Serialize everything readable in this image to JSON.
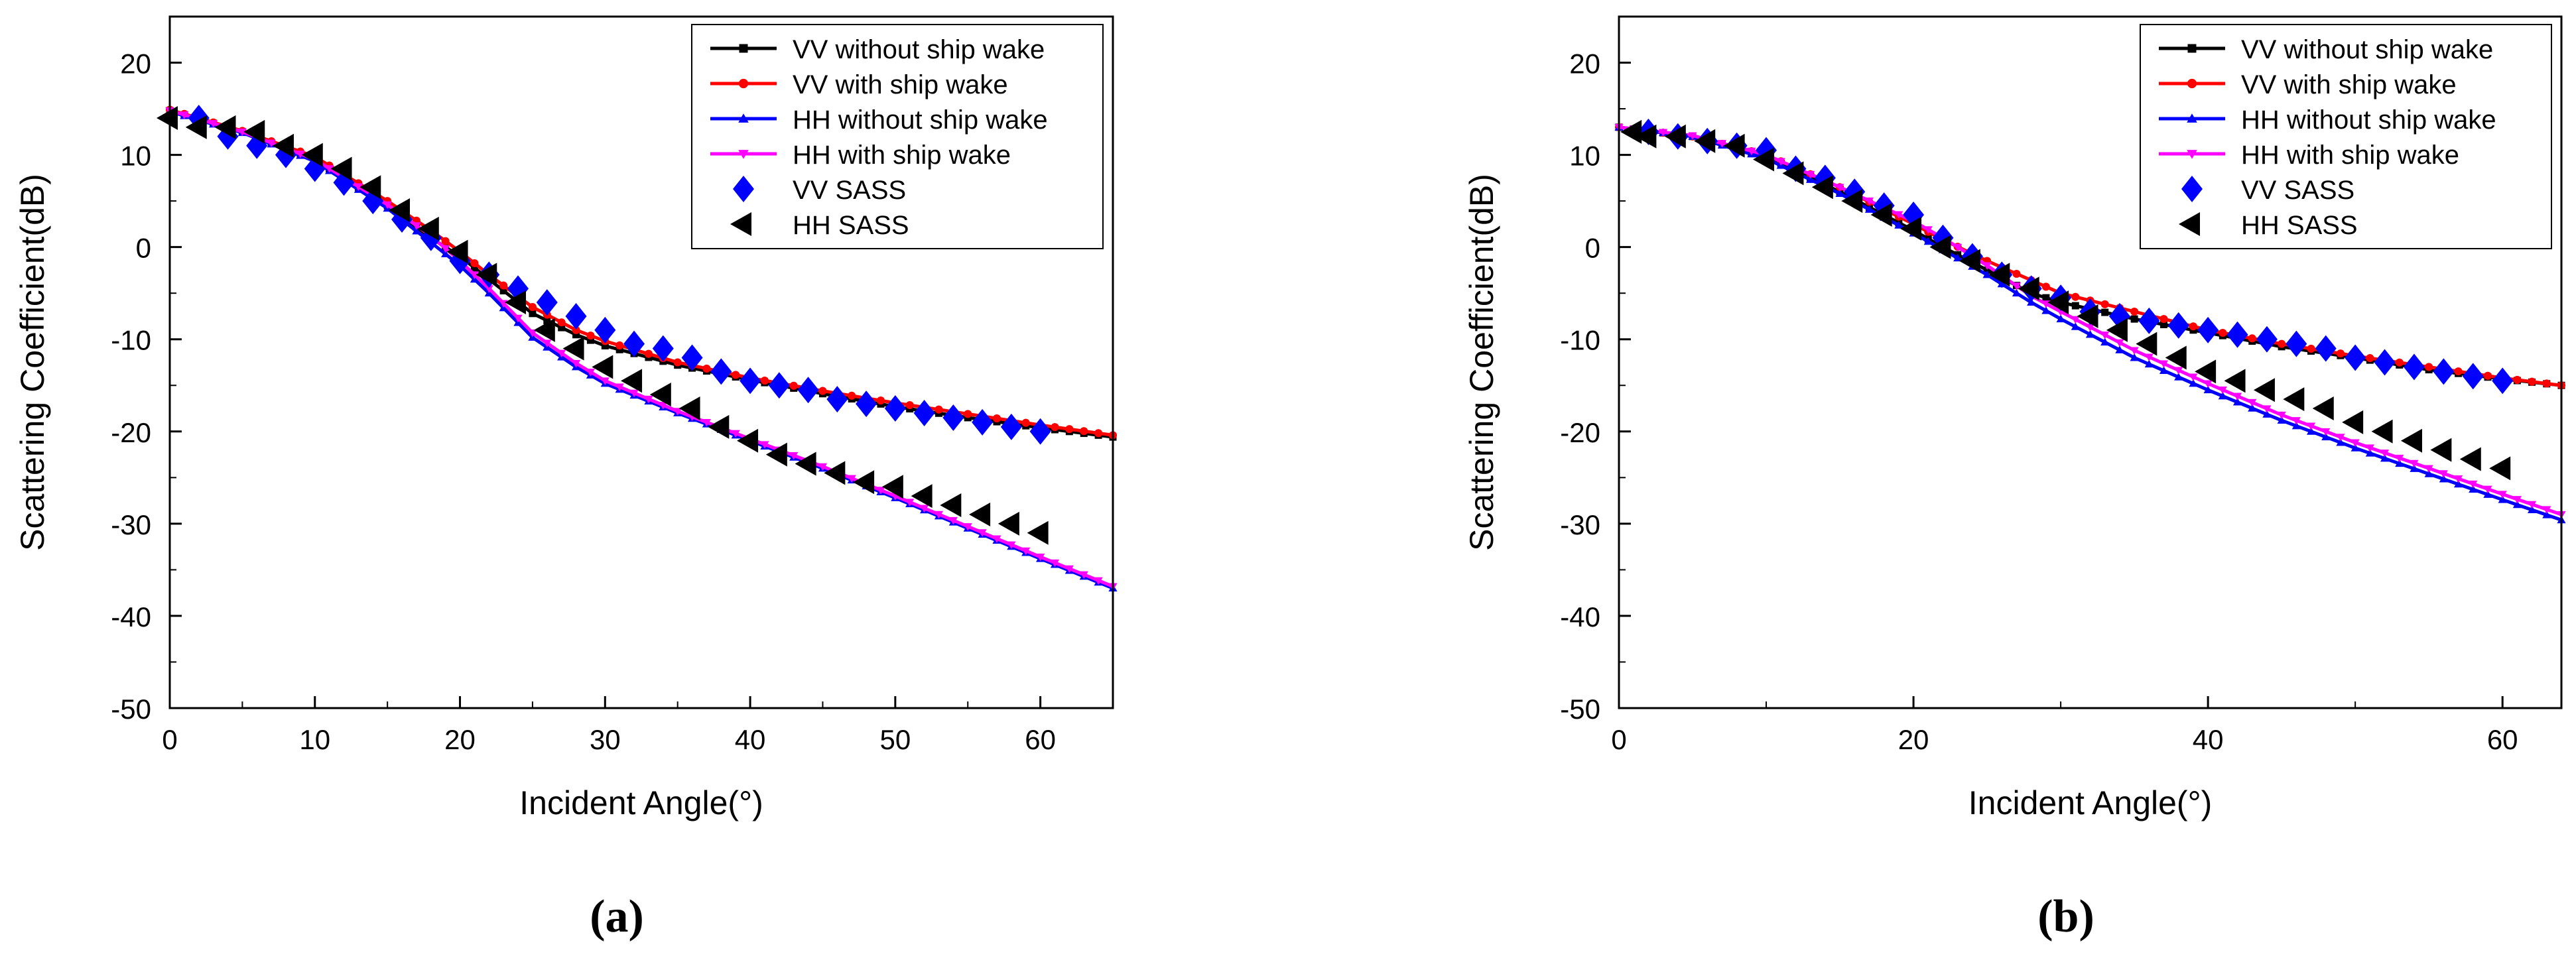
{
  "colors": {
    "vv_no_wake": "#000000",
    "vv_wake": "#ff0000",
    "hh_no_wake": "#0000ff",
    "hh_wake": "#ff00ff",
    "vv_sass": "#0000ff",
    "hh_sass": "#000000"
  },
  "chart_data": [
    {
      "type": "line",
      "panel_label": "(a)",
      "title": "",
      "xlabel": "Incident Angle(°)",
      "ylabel": "Scattering Coefficient(dB)",
      "xlim": [
        0,
        65
      ],
      "ylim": [
        -50,
        25
      ],
      "xticks": [
        0,
        10,
        20,
        30,
        40,
        50,
        60
      ],
      "yticks": [
        -50,
        -40,
        -30,
        -20,
        -10,
        0,
        10,
        20
      ],
      "legend_position": "top-right",
      "series": [
        {
          "name": "VV without ship wake",
          "marker": "square",
          "color": "#000000",
          "x": [
            0,
            5,
            10,
            15,
            18,
            20,
            22,
            25,
            28,
            30,
            35,
            40,
            45,
            50,
            55,
            60,
            65
          ],
          "y": [
            14.8,
            12.5,
            9.5,
            4.5,
            1.0,
            -1.0,
            -3.5,
            -7.2,
            -9.5,
            -10.7,
            -12.8,
            -14.4,
            -15.9,
            -17.3,
            -18.5,
            -19.6,
            -20.6
          ]
        },
        {
          "name": "VV with ship wake",
          "marker": "circle",
          "color": "#ff0000",
          "x": [
            0,
            5,
            10,
            15,
            18,
            20,
            22,
            25,
            28,
            30,
            35,
            40,
            45,
            50,
            55,
            60,
            65
          ],
          "y": [
            14.9,
            12.6,
            9.8,
            5.0,
            1.8,
            -0.5,
            -3.0,
            -6.5,
            -9.0,
            -10.2,
            -12.5,
            -14.2,
            -15.6,
            -16.9,
            -18.1,
            -19.3,
            -20.4
          ]
        },
        {
          "name": "HH without ship wake",
          "marker": "triangle-up",
          "color": "#0000ff",
          "x": [
            0,
            5,
            10,
            15,
            18,
            20,
            22,
            25,
            28,
            30,
            35,
            40,
            45,
            50,
            55,
            60,
            65
          ],
          "y": [
            14.7,
            12.4,
            9.3,
            4.2,
            0.5,
            -2.0,
            -5.0,
            -9.8,
            -13.0,
            -14.8,
            -18.0,
            -21.0,
            -24.0,
            -27.2,
            -30.5,
            -33.8,
            -37.0
          ]
        },
        {
          "name": "HH with ship wake",
          "marker": "triangle-down",
          "color": "#ff00ff",
          "x": [
            0,
            5,
            10,
            15,
            18,
            20,
            22,
            25,
            28,
            30,
            35,
            40,
            45,
            50,
            55,
            60,
            65
          ],
          "y": [
            14.8,
            12.5,
            9.5,
            4.6,
            1.2,
            -1.5,
            -4.5,
            -9.3,
            -12.6,
            -14.5,
            -17.8,
            -20.8,
            -23.8,
            -27.0,
            -30.3,
            -33.6,
            -36.8
          ]
        },
        {
          "name": "VV SASS",
          "marker": "diamond",
          "color": "#0000ff",
          "style": "scatter",
          "x": [
            2,
            4,
            6,
            8,
            10,
            12,
            14,
            16,
            18,
            20,
            22,
            24,
            26,
            28,
            30,
            32,
            34,
            36,
            38,
            40,
            42,
            44,
            46,
            48,
            50,
            52,
            54,
            56,
            58,
            60
          ],
          "y": [
            14.0,
            12.0,
            11.0,
            10.0,
            8.5,
            7.0,
            5.0,
            3.0,
            1.0,
            -1.5,
            -3.0,
            -4.5,
            -6.0,
            -7.5,
            -9.0,
            -10.5,
            -11.0,
            -12.0,
            -13.5,
            -14.5,
            -15.0,
            -15.5,
            -16.5,
            -17.0,
            -17.5,
            -18.0,
            -18.5,
            -19.0,
            -19.5,
            -20.0
          ]
        },
        {
          "name": "HH SASS",
          "marker": "triangle-left",
          "color": "#000000",
          "style": "scatter",
          "x": [
            0,
            2,
            4,
            6,
            8,
            10,
            12,
            14,
            16,
            18,
            20,
            22,
            24,
            26,
            28,
            30,
            32,
            34,
            36,
            38,
            40,
            42,
            44,
            46,
            48,
            50,
            52,
            54,
            56,
            58,
            60
          ],
          "y": [
            14.0,
            13.0,
            13.0,
            12.5,
            11.0,
            10.0,
            8.5,
            6.5,
            4.0,
            2.0,
            -0.5,
            -3.0,
            -6.0,
            -9.0,
            -11.0,
            -13.0,
            -14.5,
            -16.0,
            -17.5,
            -19.5,
            -21.0,
            -22.5,
            -23.5,
            -24.5,
            -25.5,
            -26.0,
            -27.0,
            -28.0,
            -29.0,
            -30.0,
            -31.0
          ]
        }
      ]
    },
    {
      "type": "line",
      "panel_label": "(b)",
      "title": "",
      "xlabel": "Incident Angle(°)",
      "ylabel": "Scattering Coefficient(dB)",
      "xlim": [
        0,
        64
      ],
      "ylim": [
        -50,
        25
      ],
      "xticks": [
        0,
        20,
        40,
        60
      ],
      "yticks": [
        -50,
        -40,
        -30,
        -20,
        -10,
        0,
        10,
        20
      ],
      "legend_position": "top-right",
      "series": [
        {
          "name": "VV without ship wake",
          "marker": "square",
          "color": "#000000",
          "x": [
            0,
            5,
            10,
            15,
            20,
            22,
            25,
            28,
            30,
            35,
            40,
            45,
            50,
            55,
            60,
            64
          ],
          "y": [
            13.0,
            12.0,
            9.8,
            6.0,
            1.8,
            0.0,
            -2.5,
            -5.0,
            -6.0,
            -7.8,
            -9.3,
            -10.8,
            -12.0,
            -13.3,
            -14.3,
            -15.0
          ]
        },
        {
          "name": "VV with ship wake",
          "marker": "circle",
          "color": "#ff0000",
          "x": [
            0,
            5,
            10,
            15,
            20,
            22,
            25,
            28,
            30,
            35,
            40,
            45,
            50,
            55,
            60,
            64
          ],
          "y": [
            13.0,
            12.0,
            10.0,
            6.5,
            2.5,
            0.8,
            -1.5,
            -3.6,
            -5.0,
            -7.0,
            -9.0,
            -10.5,
            -11.8,
            -13.0,
            -14.2,
            -15.0
          ]
        },
        {
          "name": "HH without ship wake",
          "marker": "triangle-up",
          "color": "#0000ff",
          "x": [
            0,
            5,
            10,
            15,
            20,
            22,
            25,
            28,
            30,
            35,
            40,
            45,
            50,
            55,
            60,
            64
          ],
          "y": [
            13.0,
            12.0,
            9.6,
            5.8,
            1.5,
            -0.3,
            -3.0,
            -6.0,
            -7.8,
            -12.0,
            -15.5,
            -18.8,
            -21.8,
            -24.6,
            -27.4,
            -29.6
          ]
        },
        {
          "name": "HH with ship wake",
          "marker": "triangle-down",
          "color": "#ff00ff",
          "x": [
            0,
            5,
            10,
            15,
            20,
            22,
            25,
            28,
            30,
            35,
            40,
            45,
            50,
            55,
            60,
            64
          ],
          "y": [
            13.0,
            12.1,
            10.0,
            6.5,
            2.8,
            1.0,
            -2.0,
            -5.3,
            -7.0,
            -11.2,
            -14.8,
            -18.2,
            -21.2,
            -24.0,
            -26.8,
            -29.0
          ]
        },
        {
          "name": "VV SASS",
          "marker": "diamond",
          "color": "#0000ff",
          "style": "scatter",
          "x": [
            2,
            4,
            6,
            8,
            10,
            12,
            14,
            16,
            18,
            20,
            22,
            24,
            26,
            28,
            30,
            32,
            34,
            36,
            38,
            40,
            42,
            44,
            46,
            48,
            50,
            52,
            54,
            56,
            58,
            60
          ],
          "y": [
            12.5,
            12.0,
            11.5,
            11.0,
            10.5,
            8.5,
            7.5,
            6.0,
            4.5,
            3.5,
            1.0,
            -1.0,
            -3.0,
            -4.5,
            -5.5,
            -7.0,
            -7.5,
            -8.0,
            -8.5,
            -9.0,
            -9.5,
            -10.0,
            -10.5,
            -11.0,
            -12.0,
            -12.5,
            -13.0,
            -13.5,
            -14.0,
            -14.5
          ]
        },
        {
          "name": "HH SASS",
          "marker": "triangle-left",
          "color": "#000000",
          "style": "scatter",
          "x": [
            1,
            2,
            4,
            6,
            8,
            10,
            12,
            14,
            16,
            18,
            20,
            22,
            24,
            26,
            28,
            30,
            32,
            34,
            36,
            38,
            40,
            42,
            44,
            46,
            48,
            50,
            52,
            54,
            56,
            58,
            60
          ],
          "y": [
            12.5,
            12.0,
            12.0,
            11.5,
            11.0,
            9.5,
            8.0,
            6.5,
            5.0,
            3.5,
            2.0,
            0.0,
            -1.5,
            -3.0,
            -4.5,
            -6.0,
            -7.5,
            -9.0,
            -10.5,
            -12.0,
            -13.5,
            -14.5,
            -15.5,
            -16.5,
            -17.5,
            -19.0,
            -20.0,
            -21.0,
            -22.0,
            -23.0,
            -24.0
          ]
        }
      ]
    }
  ]
}
